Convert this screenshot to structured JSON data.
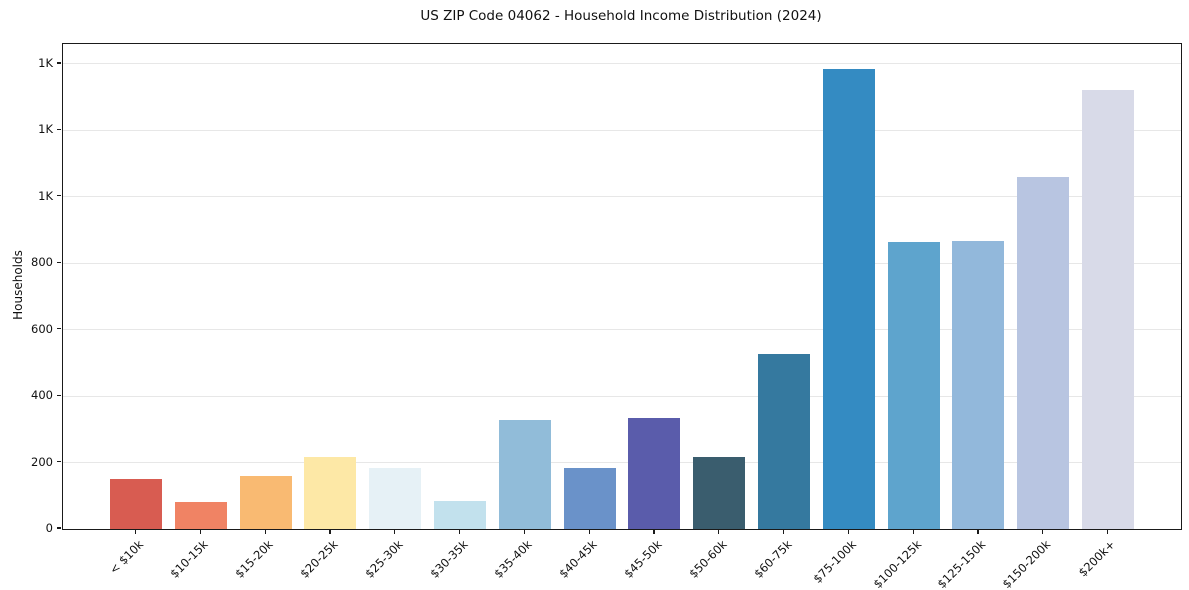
{
  "chart_data": {
    "type": "bar",
    "title": "US ZIP Code 04062 - Household Income Distribution (2024)",
    "xlabel": "",
    "ylabel": "Households",
    "categories": [
      "< $10k",
      "$10-15k",
      "$15-20k",
      "$20-25k",
      "$25-30k",
      "$30-35k",
      "$35-40k",
      "$40-45k",
      "$45-50k",
      "$50-60k",
      "$60-75k",
      "$75-100k",
      "$100-125k",
      "$125-150k",
      "$150-200k",
      "$200k+"
    ],
    "values": [
      152,
      80,
      159,
      217,
      185,
      85,
      328,
      183,
      334,
      217,
      526,
      1384,
      864,
      867,
      1059,
      1323
    ],
    "bar_colors": [
      "#d85c51",
      "#f08364",
      "#f9ba72",
      "#fde8a6",
      "#e6f1f6",
      "#c2e1ed",
      "#91bcd9",
      "#6a92c9",
      "#5a5cab",
      "#3a5d6e",
      "#35799f",
      "#348bc2",
      "#5ea4cd",
      "#92b8db",
      "#b8c5e1",
      "#d8dae8"
    ],
    "y_ticks": {
      "values": [
        0,
        200,
        400,
        600,
        800,
        1000,
        1200,
        1400
      ],
      "labels": [
        "0",
        "200",
        "400",
        "600",
        "800",
        "1K",
        "1K",
        "1K"
      ]
    },
    "ylim": [
      0,
      1460
    ],
    "grid": "horizontal",
    "grid_color": "#e7e7e7",
    "spine_color": "#1a1a1a",
    "text_color": "#111111",
    "background_color": "#ffffff",
    "legend": null
  }
}
